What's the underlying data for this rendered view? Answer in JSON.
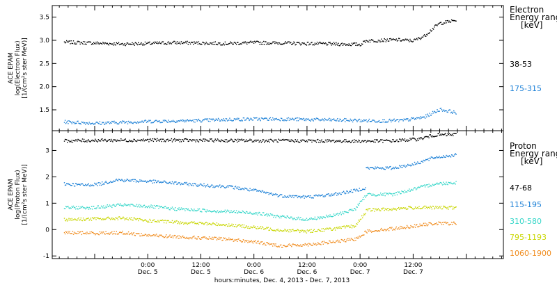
{
  "chart_data": [
    {
      "type": "scatter",
      "panel": "electron",
      "ylabel_lines": [
        "ACE EPAM",
        "log(Electron Flux)",
        "[1/(cm²s ster MeV)]"
      ],
      "ylim": [
        1.05,
        3.75
      ],
      "yticks": [
        1.5,
        2.0,
        2.5,
        3.0,
        3.5
      ],
      "ytick_labels": [
        "1.5",
        "2.0",
        "2.5",
        "3.0",
        "3.5"
      ],
      "legend_title": [
        "Electron",
        "Energy ranges",
        "[keV]"
      ],
      "series": [
        {
          "name": "38-53",
          "color": "#000000",
          "x": [
            -0.79,
            -0.5,
            -0.25,
            0.0,
            0.25,
            0.5,
            0.75,
            1.0,
            1.25,
            1.5,
            1.75,
            2.0,
            2.05,
            2.2,
            2.35,
            2.5,
            2.6,
            2.7,
            2.75,
            2.9
          ],
          "y": [
            2.97,
            2.95,
            2.93,
            2.94,
            2.96,
            2.95,
            2.94,
            2.96,
            2.95,
            2.94,
            2.93,
            2.92,
            3.0,
            3.01,
            3.02,
            3.0,
            3.1,
            3.3,
            3.38,
            3.44
          ]
        },
        {
          "name": "175-315",
          "color": "#1a7fd6",
          "x": [
            -0.79,
            -0.5,
            -0.25,
            0.0,
            0.25,
            0.5,
            0.75,
            1.0,
            1.25,
            1.5,
            1.75,
            2.0,
            2.2,
            2.4,
            2.6,
            2.75,
            2.9
          ],
          "y": [
            1.25,
            1.22,
            1.24,
            1.26,
            1.27,
            1.28,
            1.3,
            1.31,
            1.31,
            1.3,
            1.29,
            1.28,
            1.27,
            1.28,
            1.35,
            1.52,
            1.45
          ]
        }
      ]
    },
    {
      "type": "scatter",
      "panel": "proton",
      "ylabel_lines": [
        "ACE EPAM",
        "log(Proton Flux)",
        "[1/(cm²s ster MeV)]"
      ],
      "ylim": [
        -1.1,
        3.75
      ],
      "yticks": [
        -1,
        0,
        1,
        2,
        3
      ],
      "ytick_labels": [
        "-1",
        "0",
        "1",
        "2",
        "3"
      ],
      "legend_title": [
        "Proton",
        "Energy ranges",
        "[keV]"
      ],
      "series": [
        {
          "name": "47-68",
          "color": "#000000",
          "x": [
            -0.79,
            -0.5,
            0.0,
            0.5,
            1.0,
            1.5,
            2.0,
            2.3,
            2.55,
            2.7,
            2.9
          ],
          "y": [
            3.38,
            3.4,
            3.41,
            3.4,
            3.39,
            3.38,
            3.37,
            3.38,
            3.45,
            3.6,
            3.62
          ]
        },
        {
          "name": "115-195",
          "color": "#1a7fd6",
          "x": [
            -0.79,
            -0.6,
            -0.45,
            -0.3,
            0.0,
            0.25,
            0.5,
            0.75,
            1.0,
            1.25,
            1.5,
            1.75,
            1.95,
            2.05,
            2.06,
            2.3,
            2.5,
            2.7,
            2.9
          ],
          "y": [
            1.75,
            1.7,
            1.75,
            1.9,
            1.85,
            1.78,
            1.7,
            1.65,
            1.5,
            1.3,
            1.25,
            1.35,
            1.5,
            1.6,
            2.35,
            2.35,
            2.5,
            2.75,
            2.85
          ]
        },
        {
          "name": "310-580",
          "color": "#33d6c8",
          "x": [
            -0.79,
            -0.5,
            -0.25,
            0.0,
            0.25,
            0.5,
            0.75,
            1.0,
            1.25,
            1.5,
            1.75,
            1.95,
            2.06,
            2.3,
            2.5,
            2.7,
            2.9
          ],
          "y": [
            0.85,
            0.85,
            0.95,
            0.9,
            0.8,
            0.75,
            0.7,
            0.65,
            0.5,
            0.4,
            0.55,
            0.8,
            1.35,
            1.35,
            1.55,
            1.75,
            1.8
          ]
        },
        {
          "name": "795-1193",
          "color": "#c8d600",
          "x": [
            -0.79,
            -0.5,
            -0.25,
            0.0,
            0.25,
            0.5,
            0.75,
            1.0,
            1.25,
            1.5,
            1.75,
            1.95,
            2.06,
            2.3,
            2.5,
            2.7,
            2.9
          ],
          "y": [
            0.4,
            0.42,
            0.45,
            0.35,
            0.3,
            0.25,
            0.2,
            0.1,
            0.0,
            -0.05,
            0.05,
            0.15,
            0.75,
            0.8,
            0.85,
            0.85,
            0.85
          ]
        },
        {
          "name": "1060-1900",
          "color": "#f08c1e",
          "x": [
            -0.79,
            -0.5,
            -0.25,
            0.0,
            0.25,
            0.5,
            0.75,
            1.0,
            1.25,
            1.5,
            1.75,
            1.95,
            2.06,
            2.3,
            2.5,
            2.7,
            2.9
          ],
          "y": [
            -0.1,
            -0.12,
            -0.1,
            -0.2,
            -0.25,
            -0.3,
            -0.35,
            -0.45,
            -0.6,
            -0.55,
            -0.45,
            -0.35,
            -0.05,
            0.05,
            0.15,
            0.25,
            0.25
          ]
        }
      ]
    }
  ],
  "xaxis": {
    "title": "hours:minutes, Dec.  4, 2013 - Dec.  7, 2013",
    "xlim": [
      -0.9,
      3.35
    ],
    "ticks": [
      {
        "x": 0.0,
        "time": "0:00",
        "date": "Dec. 5"
      },
      {
        "x": 0.5,
        "time": "12:00",
        "date": "Dec. 5"
      },
      {
        "x": 1.0,
        "time": "0:00",
        "date": "Dec. 6"
      },
      {
        "x": 1.5,
        "time": "12:00",
        "date": "Dec. 6"
      },
      {
        "x": 2.0,
        "time": "0:00",
        "date": "Dec. 7"
      },
      {
        "x": 2.5,
        "time": "12:00",
        "date": "Dec. 7"
      }
    ]
  }
}
